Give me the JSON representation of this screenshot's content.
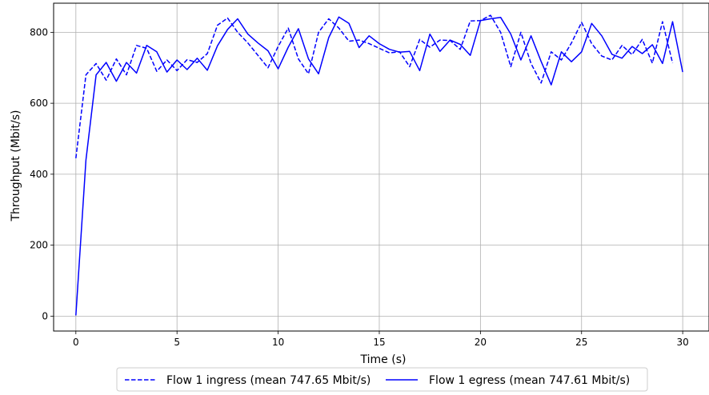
{
  "chart_data": {
    "type": "line",
    "title": "",
    "xlabel": "Time (s)",
    "ylabel": "Throughput (Mbit/s)",
    "xlim": [
      -1.1,
      31.3
    ],
    "ylim": [
      -42,
      882
    ],
    "xticks": [
      0,
      5,
      10,
      15,
      20,
      25,
      30
    ],
    "yticks": [
      0,
      200,
      400,
      600,
      800
    ],
    "grid": true,
    "legend_position": "below-center",
    "series": [
      {
        "name": "Flow 1 ingress (mean 747.65 Mbit/s)",
        "style": "dashed",
        "color": "#0000ff",
        "x": [
          0,
          0.5,
          1,
          1.5,
          2,
          2.5,
          3,
          3.5,
          4,
          4.5,
          5,
          5.5,
          6,
          6.5,
          7,
          7.5,
          8,
          8.5,
          9,
          9.5,
          10,
          10.5,
          11,
          11.5,
          12,
          12.5,
          13,
          13.5,
          14,
          14.5,
          15,
          15.5,
          16,
          16.5,
          17,
          17.5,
          18,
          18.5,
          19,
          19.5,
          20,
          20.5,
          21,
          21.5,
          22,
          22.5,
          23,
          23.5,
          24,
          24.5,
          25,
          25.5,
          26,
          26.5,
          27,
          27.5,
          28,
          28.5,
          29,
          29.5
        ],
        "y": [
          445,
          680,
          712,
          665,
          725,
          680,
          763,
          755,
          690,
          722,
          692,
          723,
          715,
          740,
          820,
          840,
          800,
          770,
          735,
          700,
          760,
          812,
          725,
          683,
          800,
          838,
          812,
          775,
          778,
          768,
          755,
          742,
          745,
          703,
          780,
          758,
          778,
          777,
          752,
          832,
          833,
          848,
          800,
          703,
          800,
          712,
          657,
          745,
          722,
          770,
          828,
          768,
          733,
          722,
          763,
          737,
          780,
          713,
          830,
          713
        ]
      },
      {
        "name": "Flow 1 egress (mean 747.61 Mbit/s)",
        "style": "solid",
        "color": "#0000ff",
        "x": [
          0,
          0.5,
          1,
          1.5,
          2,
          2.5,
          3,
          3.5,
          4,
          4.5,
          5,
          5.5,
          6,
          6.5,
          7,
          7.5,
          8,
          8.5,
          9,
          9.5,
          10,
          10.5,
          11,
          11.5,
          12,
          12.5,
          13,
          13.5,
          14,
          14.5,
          15,
          15.5,
          16,
          16.5,
          17,
          17.5,
          18,
          18.5,
          19,
          19.5,
          20,
          20.5,
          21,
          21.5,
          22,
          22.5,
          23,
          23.5,
          24,
          24.5,
          25,
          25.5,
          26,
          26.5,
          27,
          27.5,
          28,
          28.5,
          29,
          29.5,
          30
        ],
        "y": [
          2,
          440,
          680,
          715,
          662,
          715,
          685,
          763,
          745,
          688,
          722,
          695,
          727,
          693,
          762,
          808,
          838,
          795,
          770,
          748,
          697,
          758,
          810,
          725,
          683,
          785,
          843,
          825,
          757,
          790,
          768,
          752,
          744,
          746,
          692,
          795,
          746,
          778,
          766,
          735,
          833,
          838,
          842,
          795,
          722,
          790,
          718,
          652,
          745,
          717,
          745,
          825,
          790,
          738,
          727,
          760,
          740,
          765,
          712,
          830,
          688
        ]
      }
    ]
  }
}
